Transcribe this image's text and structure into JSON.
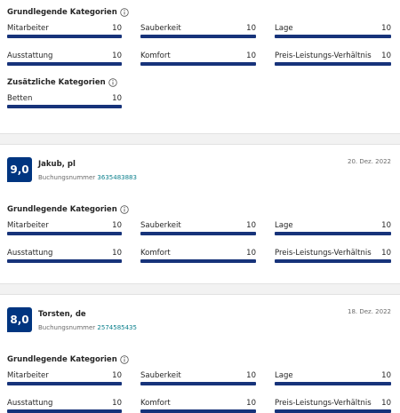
{
  "sections": [
    {
      "groups": [
        {
          "title": "Grundlegende Kategorien",
          "items": [
            {
              "label": "Mitarbeiter",
              "score": 10
            },
            {
              "label": "Sauberkeit",
              "score": 10
            },
            {
              "label": "Lage",
              "score": 10
            },
            {
              "label": "Ausstattung",
              "score": 10
            },
            {
              "label": "Komfort",
              "score": 10
            },
            {
              "label": "Preis-Leistungs-Verhältnis",
              "score": 10
            }
          ]
        },
        {
          "title": "Zusätzliche Kategorien",
          "items": [
            {
              "label": "Betten",
              "score": 10
            }
          ]
        }
      ]
    },
    {
      "header": {
        "score": "9,0",
        "name": "Jakub, pl",
        "date": "20. Dez. 2022",
        "booking_label": "Buchungsnummer",
        "booking_number": "3635483883"
      },
      "groups": [
        {
          "title": "Grundlegende Kategorien",
          "items": [
            {
              "label": "Mitarbeiter",
              "score": 10
            },
            {
              "label": "Sauberkeit",
              "score": 10
            },
            {
              "label": "Lage",
              "score": 10
            },
            {
              "label": "Ausstattung",
              "score": 10
            },
            {
              "label": "Komfort",
              "score": 10
            },
            {
              "label": "Preis-Leistungs-Verhältnis",
              "score": 10
            }
          ]
        }
      ]
    },
    {
      "header": {
        "score": "8,0",
        "name": "Torsten, de",
        "date": "18. Dez. 2022",
        "booking_label": "Buchungsnummer",
        "booking_number": "2574585435"
      },
      "groups": [
        {
          "title": "Grundlegende Kategorien",
          "items": [
            {
              "label": "Mitarbeiter",
              "score": 10
            },
            {
              "label": "Sauberkeit",
              "score": 10
            },
            {
              "label": "Lage",
              "score": 10
            },
            {
              "label": "Ausstattung",
              "score": 10
            },
            {
              "label": "Komfort",
              "score": 10
            },
            {
              "label": "Preis-Leistungs-Verhältnis",
              "score": 10
            }
          ]
        }
      ]
    }
  ]
}
